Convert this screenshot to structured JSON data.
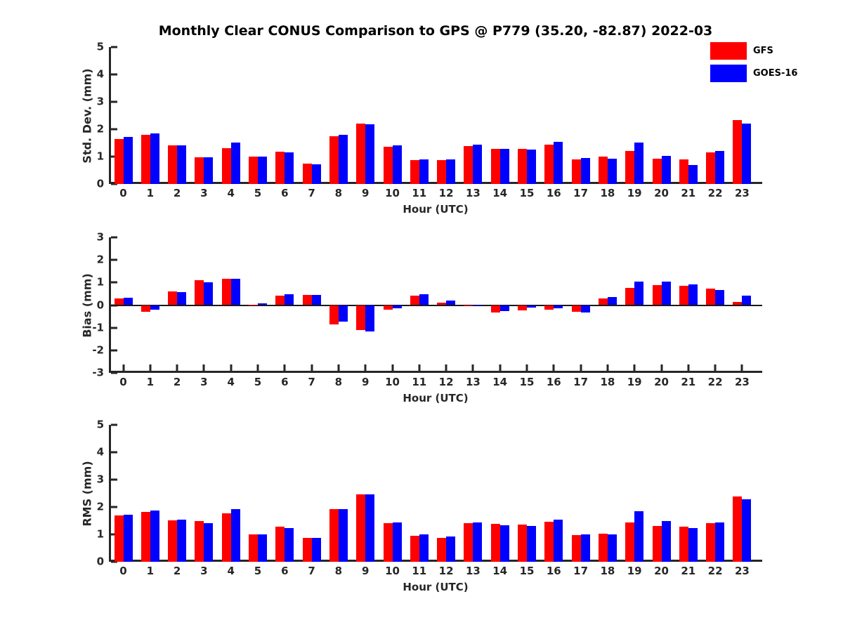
{
  "title": "Monthly Clear CONUS Comparison to GPS @ P779 (35.20, -82.87) 2022-03",
  "legend": {
    "items": [
      {
        "label": "GFS",
        "color": "#ff0000"
      },
      {
        "label": "GOES-16",
        "color": "#0000ff"
      }
    ]
  },
  "chart_data": [
    {
      "type": "bar",
      "title": "",
      "ylabel": "Std. Dev. (mm)",
      "xlabel": "Hour (UTC)",
      "ylim": [
        0,
        5
      ],
      "yticks": [
        0,
        1,
        2,
        3,
        4,
        5
      ],
      "grid": false,
      "legend_position": "top-right",
      "categories": [
        "0",
        "1",
        "2",
        "3",
        "4",
        "5",
        "6",
        "7",
        "8",
        "9",
        "10",
        "11",
        "12",
        "13",
        "14",
        "15",
        "16",
        "17",
        "18",
        "19",
        "20",
        "21",
        "22",
        "23"
      ],
      "series": [
        {
          "name": "GFS",
          "color": "#ff0000",
          "values": [
            1.65,
            1.8,
            1.4,
            0.97,
            1.32,
            1.0,
            1.19,
            0.74,
            1.75,
            2.2,
            1.37,
            0.86,
            0.86,
            1.38,
            1.29,
            1.28,
            1.43,
            0.9,
            1.0,
            1.21,
            0.92,
            0.9,
            1.16,
            2.33
          ]
        },
        {
          "name": "GOES-16",
          "color": "#0000ff",
          "values": [
            1.72,
            1.85,
            1.42,
            0.98,
            1.52,
            1.01,
            1.15,
            0.71,
            1.8,
            2.17,
            1.41,
            0.91,
            0.91,
            1.43,
            1.29,
            1.26,
            1.55,
            0.96,
            0.93,
            1.51,
            1.03,
            0.7,
            1.2,
            2.2
          ]
        }
      ]
    },
    {
      "type": "bar",
      "title": "",
      "ylabel": "Bias (mm)",
      "xlabel": "Hour (UTC)",
      "ylim": [
        -3,
        3
      ],
      "yticks": [
        -3,
        -2,
        -1,
        0,
        1,
        2,
        3
      ],
      "grid": false,
      "zero_line": true,
      "categories": [
        "0",
        "1",
        "2",
        "3",
        "4",
        "5",
        "6",
        "7",
        "8",
        "9",
        "10",
        "11",
        "12",
        "13",
        "14",
        "15",
        "16",
        "17",
        "18",
        "19",
        "20",
        "21",
        "22",
        "23"
      ],
      "series": [
        {
          "name": "GFS",
          "color": "#ff0000",
          "values": [
            0.28,
            -0.28,
            0.6,
            1.1,
            1.17,
            0.03,
            0.42,
            0.45,
            -0.85,
            -1.1,
            -0.2,
            0.42,
            0.12,
            -0.06,
            -0.32,
            -0.24,
            -0.2,
            -0.3,
            0.3,
            0.76,
            0.9,
            0.86,
            0.73,
            0.13
          ]
        },
        {
          "name": "GOES-16",
          "color": "#0000ff",
          "values": [
            0.33,
            -0.2,
            0.56,
            1.0,
            1.18,
            0.08,
            0.48,
            0.44,
            -0.73,
            -1.17,
            -0.15,
            0.48,
            0.2,
            -0.03,
            -0.26,
            -0.1,
            -0.13,
            -0.33,
            0.36,
            1.05,
            1.05,
            0.93,
            0.68,
            0.41
          ]
        }
      ]
    },
    {
      "type": "bar",
      "title": "",
      "ylabel": "RMS (mm)",
      "xlabel": "Hour (UTC)",
      "ylim": [
        0,
        5
      ],
      "yticks": [
        0,
        1,
        2,
        3,
        4,
        5
      ],
      "grid": false,
      "categories": [
        "0",
        "1",
        "2",
        "3",
        "4",
        "5",
        "6",
        "7",
        "8",
        "9",
        "10",
        "11",
        "12",
        "13",
        "14",
        "15",
        "16",
        "17",
        "18",
        "19",
        "20",
        "21",
        "22",
        "23"
      ],
      "series": [
        {
          "name": "GFS",
          "color": "#ff0000",
          "values": [
            1.68,
            1.81,
            1.51,
            1.48,
            1.78,
            1.0,
            1.27,
            0.87,
            1.93,
            2.47,
            1.4,
            0.96,
            0.87,
            1.4,
            1.38,
            1.36,
            1.47,
            0.97,
            1.02,
            1.44,
            1.31,
            1.27,
            1.4,
            2.38
          ]
        },
        {
          "name": "GOES-16",
          "color": "#0000ff",
          "values": [
            1.73,
            1.88,
            1.53,
            1.41,
            1.93,
            0.99,
            1.24,
            0.86,
            1.93,
            2.46,
            1.43,
            1.0,
            0.93,
            1.44,
            1.34,
            1.31,
            1.55,
            0.99,
            0.99,
            1.85,
            1.5,
            1.22,
            1.43,
            2.28
          ]
        }
      ]
    }
  ]
}
